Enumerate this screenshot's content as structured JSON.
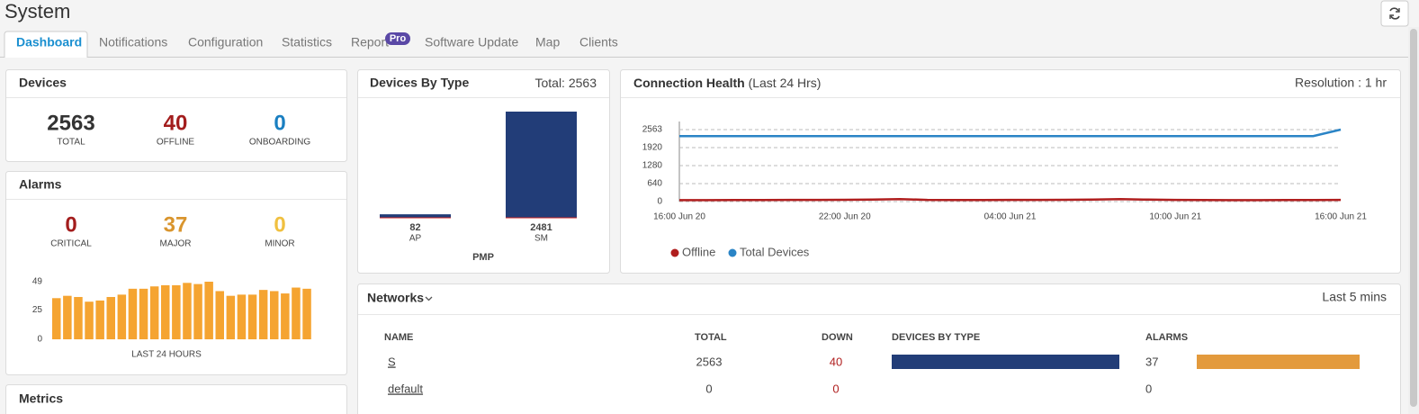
{
  "header": {
    "title": "System"
  },
  "tabs": {
    "items": [
      "Dashboard",
      "Notifications",
      "Configuration",
      "Statistics",
      "Report",
      "Software Update",
      "Map",
      "Clients"
    ],
    "active": 0,
    "badge": "Pro"
  },
  "devices": {
    "title": "Devices",
    "stats": [
      {
        "value": 2563,
        "label": "TOTAL"
      },
      {
        "value": 40,
        "label": "OFFLINE"
      },
      {
        "value": 0,
        "label": "ONBOARDING"
      }
    ]
  },
  "alarms": {
    "title": "Alarms",
    "stats": [
      {
        "value": 0,
        "label": "CRITICAL"
      },
      {
        "value": 37,
        "label": "MAJOR"
      },
      {
        "value": 0,
        "label": "MINOR"
      }
    ],
    "chart_data": {
      "type": "bar",
      "xlabel": "LAST 24 HOURS",
      "color": "#f5a431",
      "values": [
        35,
        37,
        36,
        32,
        33,
        36,
        38,
        43,
        43,
        45,
        46,
        46,
        48,
        47,
        49,
        41,
        37,
        38,
        38,
        42,
        41,
        39,
        44,
        43
      ],
      "ylim": [
        0,
        49
      ],
      "yticks": [
        0,
        25,
        49
      ]
    }
  },
  "metrics": {
    "title": "Metrics"
  },
  "devices_by_type": {
    "title": "Devices By Type",
    "total_label": "Total:",
    "total": 2563,
    "chart_data": {
      "type": "bar",
      "group": "PMP",
      "color": "#223d78",
      "categories": [
        "AP",
        "SM"
      ],
      "values": [
        82,
        2481
      ]
    }
  },
  "connection_health": {
    "title": "Connection Health",
    "subtitle": "(Last 24 Hrs)",
    "resolution": "Resolution : 1 hr",
    "chart_data": {
      "type": "line",
      "categories": [
        "16:00 Jun 20",
        null,
        null,
        null,
        null,
        null,
        "22:00 Jun 20",
        null,
        null,
        null,
        null,
        null,
        "04:00 Jun 21",
        null,
        null,
        null,
        null,
        null,
        "10:00 Jun 21",
        null,
        null,
        null,
        null,
        null,
        "16:00 Jun 21"
      ],
      "series": [
        {
          "name": "Offline",
          "color": "#b01e1e",
          "values": [
            50,
            50,
            55,
            55,
            60,
            60,
            65,
            70,
            90,
            60,
            55,
            55,
            60,
            60,
            65,
            70,
            85,
            70,
            60,
            55,
            50,
            50,
            55,
            55,
            60
          ]
        },
        {
          "name": "Total Devices",
          "color": "#2a84c6",
          "values": [
            2330,
            2330,
            2330,
            2330,
            2330,
            2330,
            2330,
            2330,
            2330,
            2330,
            2330,
            2330,
            2330,
            2330,
            2330,
            2330,
            2330,
            2330,
            2330,
            2330,
            2330,
            2330,
            2330,
            2330,
            2563
          ]
        }
      ],
      "ylim": [
        0,
        2850
      ],
      "yticks": [
        0,
        640,
        1280,
        1920,
        2563
      ],
      "grid": true
    }
  },
  "networks": {
    "title": "Networks",
    "period": "Last 5 mins",
    "columns": [
      "NAME",
      "TOTAL",
      "DOWN",
      "DEVICES BY TYPE",
      "ALARMS"
    ],
    "rows": [
      {
        "name": "S",
        "total": 2563,
        "down": 40,
        "alarms": 37
      },
      {
        "name": "default",
        "total": 0,
        "down": 0,
        "alarms": 0
      }
    ]
  }
}
